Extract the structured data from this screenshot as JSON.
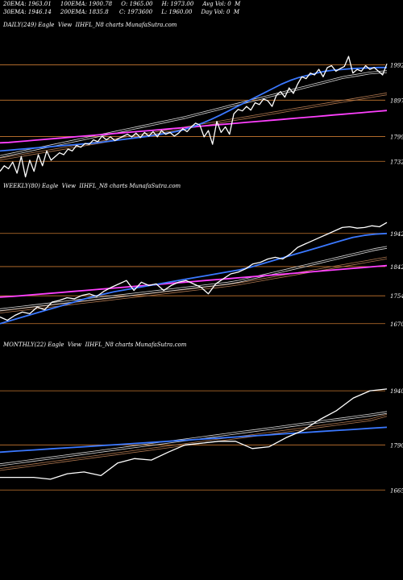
{
  "header": {
    "line1": "20EMA: 1963.01     100EMA: 1900.78     O: 1965.00     H: 1973.00     Avg Vol: 0  M",
    "line2": "30EMA: 1946.14     200EMA: 1835.8      C: 1973600     L: 1960.00     Day Vol: 0  M"
  },
  "colors": {
    "background": "#000000",
    "gridline": "#c87830",
    "price": "#ffffff",
    "ema_fast": "#3a78ff",
    "ema_slow": "#ff40ff",
    "ema_mid": "#d8d8d8",
    "ema_long": "#b07850"
  },
  "chart_data": [
    {
      "type": "line",
      "title": "DAILY(249) Eagle  View  IIHFL_N8 charts MunafaSutra.com",
      "ylim": [
        1700,
        2015
      ],
      "yticks": [
        1992,
        1897,
        1799,
        1732
      ],
      "series": [
        {
          "role": "price",
          "values": [
            1705,
            1720,
            1712,
            1730,
            1700,
            1745,
            1690,
            1735,
            1705,
            1750,
            1720,
            1760,
            1735,
            1745,
            1755,
            1750,
            1765,
            1760,
            1775,
            1770,
            1780,
            1778,
            1790,
            1785,
            1800,
            1790,
            1798,
            1788,
            1794,
            1800,
            1805,
            1798,
            1808,
            1796,
            1810,
            1800,
            1812,
            1798,
            1815,
            1805,
            1810,
            1800,
            1808,
            1820,
            1812,
            1825,
            1835,
            1830,
            1798,
            1815,
            1778,
            1840,
            1810,
            1825,
            1805,
            1860,
            1872,
            1868,
            1880,
            1870,
            1890,
            1885,
            1900,
            1895,
            1880,
            1910,
            1920,
            1905,
            1930,
            1915,
            1940,
            1960,
            1955,
            1970,
            1965,
            1980,
            1960,
            1985,
            1990,
            1975,
            1982,
            1988,
            2015,
            1970,
            1980,
            1975,
            1990,
            1980,
            1985,
            1975,
            1965,
            1995
          ]
        },
        {
          "role": "ema_fast",
          "values": [
            1760,
            1762,
            1764,
            1766,
            1768,
            1770,
            1772,
            1774,
            1776,
            1778,
            1780,
            1782,
            1785,
            1788,
            1791,
            1794,
            1797,
            1800,
            1804,
            1808,
            1812,
            1818,
            1826,
            1835,
            1845,
            1856,
            1868,
            1880,
            1892,
            1904,
            1916,
            1928,
            1940,
            1950,
            1958,
            1964,
            1970,
            1975,
            1978,
            1980,
            1982,
            1983,
            1984,
            1985,
            1985
          ]
        },
        {
          "role": "ema_slow",
          "values": [
            1782,
            1783,
            1785,
            1787,
            1789,
            1791,
            1793,
            1795,
            1797,
            1799,
            1801,
            1803,
            1805,
            1807,
            1809,
            1811,
            1813,
            1815,
            1817,
            1819,
            1821,
            1823,
            1825,
            1827,
            1829,
            1831,
            1833,
            1835,
            1837,
            1839,
            1841,
            1843,
            1845,
            1847,
            1849,
            1851,
            1853,
            1855,
            1857,
            1859,
            1861,
            1863,
            1865,
            1867,
            1869
          ]
        },
        {
          "role": "ema_mid",
          "values": [
            1745,
            1750,
            1755,
            1760,
            1765,
            1770,
            1775,
            1780,
            1785,
            1790,
            1795,
            1800,
            1805,
            1810,
            1815,
            1820,
            1825,
            1830,
            1835,
            1840,
            1845,
            1850,
            1856,
            1862,
            1868,
            1874,
            1880,
            1886,
            1892,
            1898,
            1904,
            1910,
            1916,
            1922,
            1928,
            1934,
            1940,
            1946,
            1952,
            1958,
            1962,
            1966,
            1970,
            1972,
            1974
          ]
        },
        {
          "role": "ema_long",
          "values": [
            1738,
            1742,
            1746,
            1750,
            1754,
            1758,
            1762,
            1766,
            1770,
            1774,
            1778,
            1782,
            1786,
            1790,
            1794,
            1798,
            1802,
            1806,
            1810,
            1814,
            1818,
            1822,
            1826,
            1830,
            1834,
            1838,
            1842,
            1846,
            1850,
            1854,
            1858,
            1862,
            1866,
            1870,
            1874,
            1878,
            1882,
            1886,
            1890,
            1894,
            1898,
            1902,
            1906,
            1910,
            1914
          ]
        }
      ]
    },
    {
      "type": "line",
      "title": "WEEKLY(80) Eagle  View  IIHFL_N8 charts MunafaSutra.com",
      "ylim": [
        1650,
        1990
      ],
      "yticks": [
        1942,
        1842,
        1754,
        1670
      ],
      "series": [
        {
          "role": "price",
          "values": [
            1690,
            1680,
            1695,
            1705,
            1700,
            1720,
            1712,
            1735,
            1740,
            1748,
            1745,
            1755,
            1760,
            1752,
            1768,
            1780,
            1790,
            1800,
            1770,
            1795,
            1785,
            1790,
            1770,
            1785,
            1795,
            1800,
            1790,
            1780,
            1760,
            1790,
            1805,
            1820,
            1825,
            1835,
            1850,
            1855,
            1865,
            1870,
            1865,
            1880,
            1900,
            1910,
            1920,
            1930,
            1940,
            1950,
            1960,
            1962,
            1958,
            1960,
            1965,
            1962,
            1975
          ]
        },
        {
          "role": "ema_fast",
          "values": [
            1670,
            1680,
            1690,
            1700,
            1710,
            1720,
            1730,
            1740,
            1750,
            1758,
            1766,
            1772,
            1778,
            1784,
            1790,
            1796,
            1802,
            1808,
            1814,
            1820,
            1826,
            1832,
            1840,
            1850,
            1860,
            1870,
            1880,
            1890,
            1900,
            1910,
            1920,
            1930,
            1936,
            1940,
            1942
          ]
        },
        {
          "role": "ema_slow",
          "values": [
            1750,
            1752,
            1755,
            1758,
            1761,
            1764,
            1767,
            1770,
            1773,
            1776,
            1779,
            1782,
            1785,
            1788,
            1791,
            1794,
            1797,
            1800,
            1803,
            1806,
            1809,
            1812,
            1815,
            1818,
            1821,
            1824,
            1827,
            1830,
            1833,
            1836,
            1839,
            1842,
            1845
          ]
        },
        {
          "role": "ema_mid",
          "values": [
            1712,
            1716,
            1720,
            1724,
            1728,
            1732,
            1736,
            1740,
            1744,
            1748,
            1752,
            1756,
            1760,
            1764,
            1768,
            1772,
            1776,
            1780,
            1784,
            1788,
            1792,
            1798,
            1806,
            1814,
            1822,
            1830,
            1838,
            1846,
            1854,
            1862,
            1870,
            1878,
            1886,
            1894,
            1900
          ]
        },
        {
          "role": "ema_long",
          "values": [
            1705,
            1709,
            1713,
            1717,
            1721,
            1725,
            1729,
            1733,
            1737,
            1741,
            1745,
            1749,
            1753,
            1757,
            1761,
            1765,
            1769,
            1773,
            1777,
            1781,
            1785,
            1790,
            1796,
            1802,
            1808,
            1814,
            1820,
            1826,
            1832,
            1838,
            1844,
            1850,
            1856,
            1862,
            1868
          ]
        }
      ]
    },
    {
      "type": "line",
      "title": "MONTHLY(22) Eagle  View  IIHFL_N8 charts MunafaSutra.com",
      "ylim": [
        1650,
        1985
      ],
      "yticks": [
        1940,
        1790,
        1665
      ],
      "series": [
        {
          "role": "price",
          "values": [
            1700,
            1700,
            1700,
            1695,
            1710,
            1715,
            1705,
            1740,
            1752,
            1748,
            1770,
            1790,
            1795,
            1800,
            1800,
            1780,
            1785,
            1810,
            1830,
            1860,
            1885,
            1920,
            1940,
            1945
          ]
        },
        {
          "role": "ema_fast",
          "values": [
            1770,
            1773,
            1776,
            1779,
            1782,
            1785,
            1788,
            1791,
            1794,
            1797,
            1800,
            1803,
            1806,
            1809,
            1812,
            1815,
            1818,
            1821,
            1824,
            1827,
            1830,
            1833,
            1836,
            1839
          ]
        },
        {
          "role": "ema_mid",
          "values": [
            1735,
            1741,
            1747,
            1753,
            1759,
            1765,
            1771,
            1777,
            1783,
            1789,
            1795,
            1801,
            1807,
            1813,
            1819,
            1825,
            1831,
            1837,
            1843,
            1849,
            1855,
            1861,
            1867,
            1873,
            1880
          ]
        },
        {
          "role": "ema_long",
          "values": [
            1722,
            1728,
            1734,
            1740,
            1746,
            1752,
            1758,
            1764,
            1770,
            1776,
            1782,
            1788,
            1794,
            1800,
            1806,
            1812,
            1818,
            1824,
            1830,
            1836,
            1842,
            1848,
            1854,
            1860,
            1872
          ]
        }
      ]
    }
  ]
}
